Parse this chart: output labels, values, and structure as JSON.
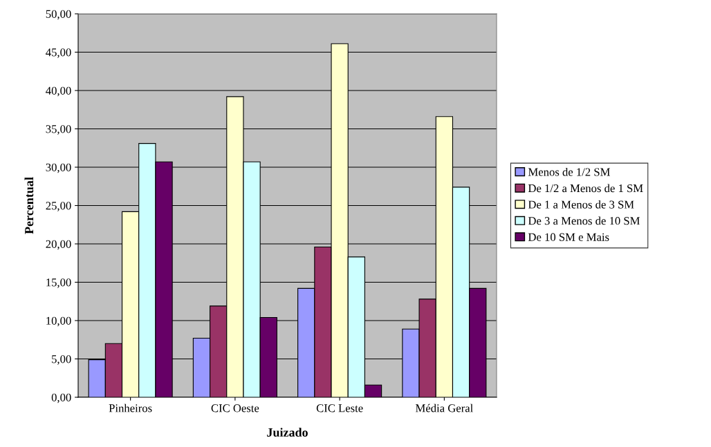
{
  "chart_data": {
    "type": "bar",
    "xlabel": "Juizado",
    "ylabel": "Percentual",
    "categories": [
      "Pinheiros",
      "CIC Oeste",
      "CIC Leste",
      "Média Geral"
    ],
    "series": [
      {
        "name": "Menos de 1/2 SM",
        "color": "#9999ff",
        "values": [
          4.9,
          7.7,
          14.2,
          8.9
        ]
      },
      {
        "name": "De 1/2 a Menos de 1 SM",
        "color": "#993366",
        "values": [
          7.0,
          11.9,
          19.6,
          12.8
        ]
      },
      {
        "name": "De 1 a Menos de 3 SM",
        "color": "#ffffcc",
        "values": [
          24.2,
          39.2,
          46.1,
          36.6
        ]
      },
      {
        "name": "De 3 a Menos de 10 SM",
        "color": "#ccffff",
        "values": [
          33.1,
          30.7,
          18.3,
          27.4
        ]
      },
      {
        "name": "De 10 SM e Mais",
        "color": "#660066",
        "values": [
          30.7,
          10.4,
          1.6,
          14.2
        ]
      }
    ],
    "ylim": [
      0,
      50
    ],
    "yticks": [
      {
        "value": 0,
        "label": "0,00"
      },
      {
        "value": 5,
        "label": "5,00"
      },
      {
        "value": 10,
        "label": "10,00"
      },
      {
        "value": 15,
        "label": "15,00"
      },
      {
        "value": 20,
        "label": "20,00"
      },
      {
        "value": 25,
        "label": "25,00"
      },
      {
        "value": 30,
        "label": "30,00"
      },
      {
        "value": 35,
        "label": "35,00"
      },
      {
        "value": 40,
        "label": "40,00"
      },
      {
        "value": 45,
        "label": "45,00"
      },
      {
        "value": 50,
        "label": "50,00"
      }
    ],
    "grid": "y",
    "legend": "right"
  }
}
